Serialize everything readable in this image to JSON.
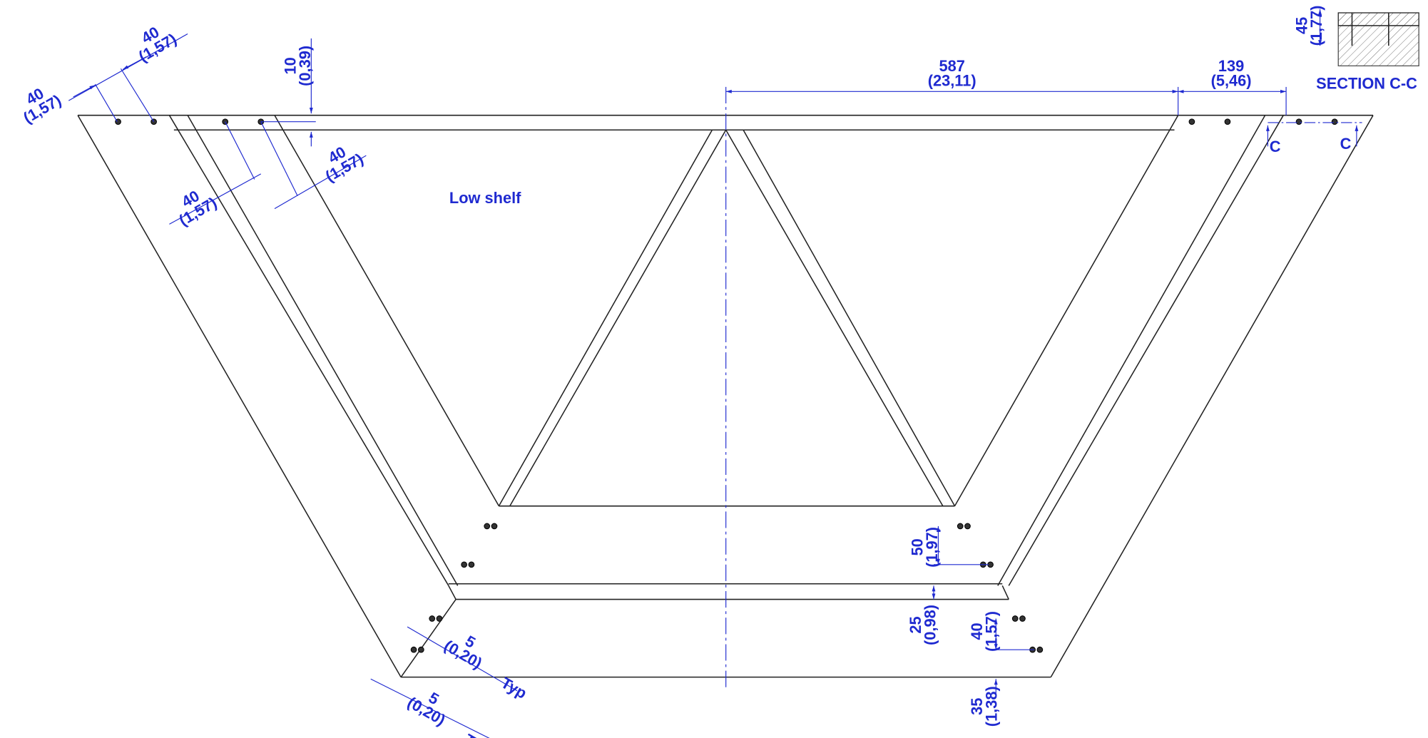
{
  "title": "Low shelf",
  "section": {
    "title": "SECTION C-C",
    "marker": "C"
  },
  "note": "Typ",
  "dimensions": [
    {
      "value": "40",
      "inch": "(1,57)"
    },
    {
      "value": "40",
      "inch": "(1,57)"
    },
    {
      "value": "10",
      "inch": "(0,39)"
    },
    {
      "value": "40",
      "inch": "(1,57)"
    },
    {
      "value": "40",
      "inch": "(1,57)"
    },
    {
      "value": "587",
      "inch": "(23,11)"
    },
    {
      "value": "139",
      "inch": "(5,46)"
    },
    {
      "value": "45",
      "inch": "(1,77)"
    },
    {
      "value": "50",
      "inch": "(1,97)"
    },
    {
      "value": "25",
      "inch": "(0,98)"
    },
    {
      "value": "40",
      "inch": "(1,57)"
    },
    {
      "value": "35",
      "inch": "(1,38)"
    },
    {
      "value": "5",
      "inch": "(0,20)"
    },
    {
      "value": "5",
      "inch": "(0,20)"
    }
  ]
}
